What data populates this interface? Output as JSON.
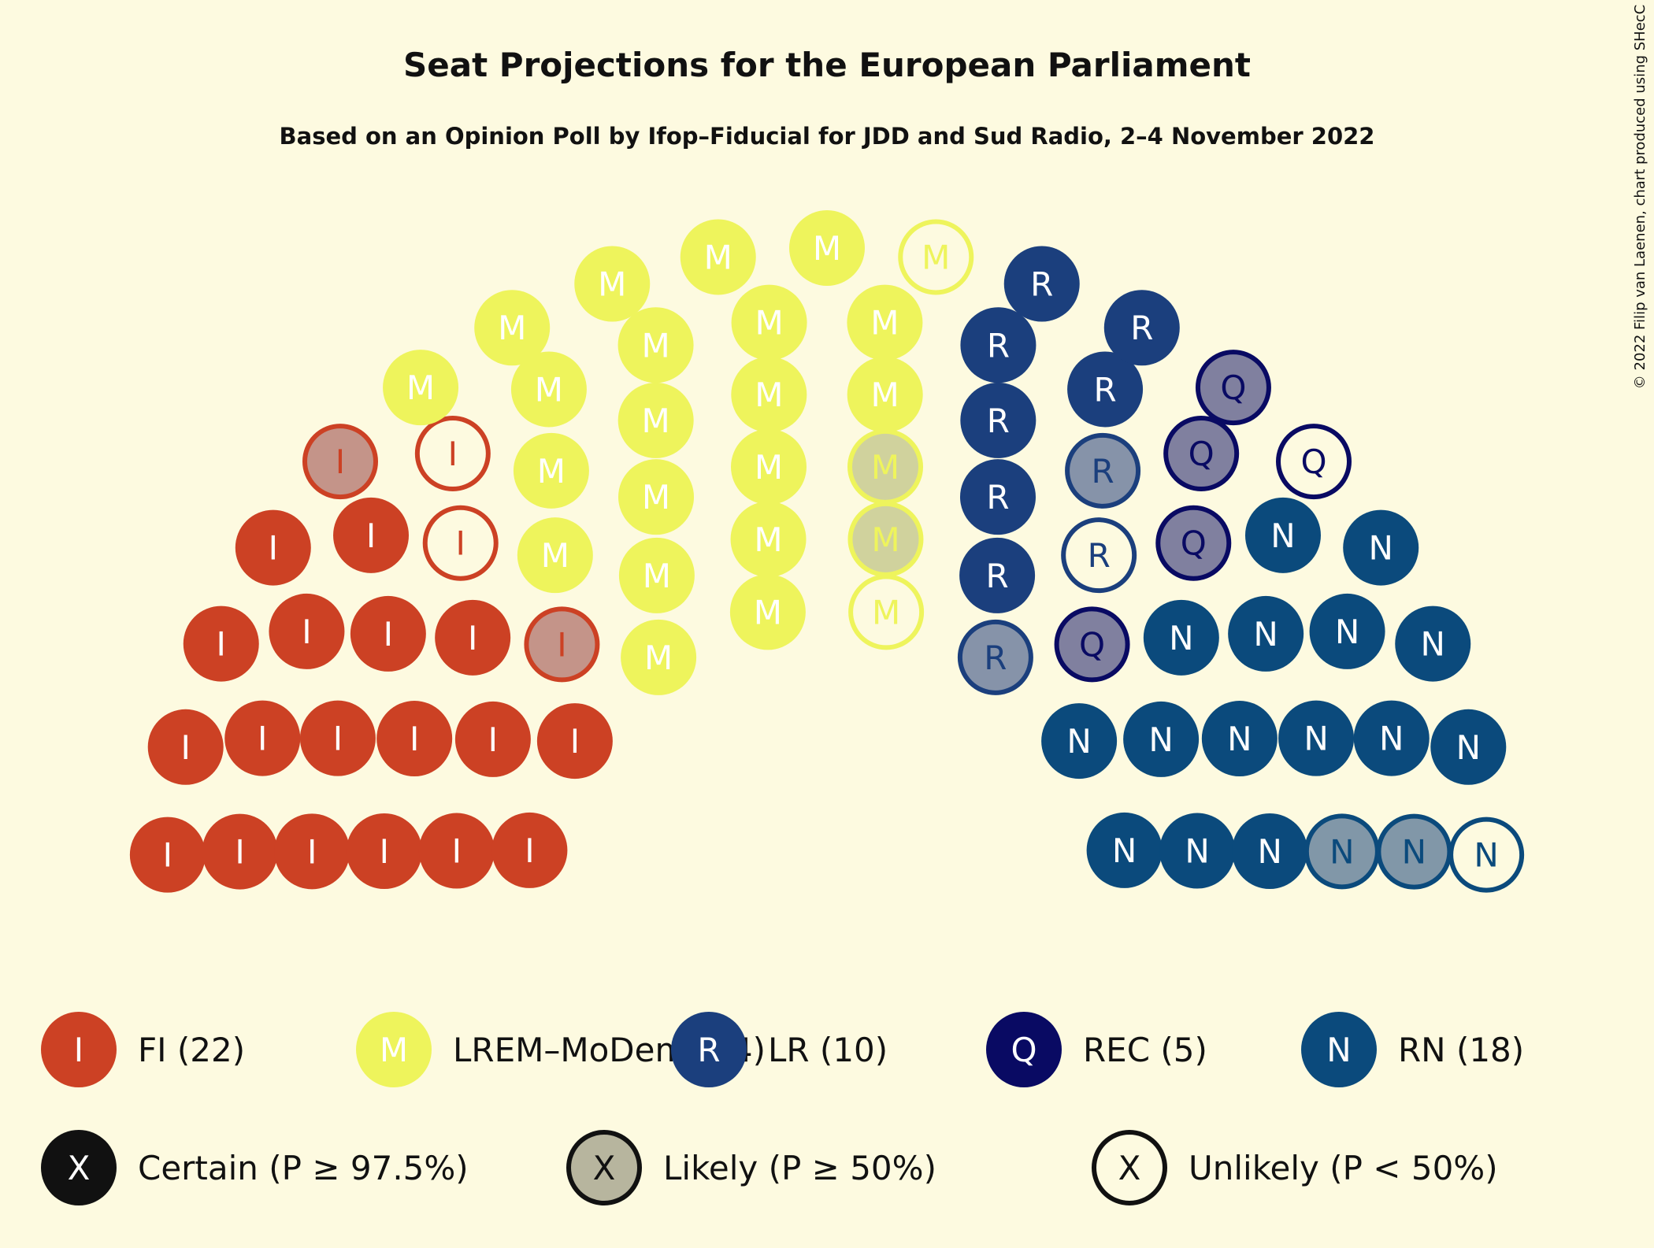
{
  "title": "Seat Projections for the European Parliament",
  "subtitle": "Based on an Opinion Poll by Ifop–Fiducial for JDD and Sud Radio, 2–4 November 2022",
  "copyright": "© 2022 Filip van Laenen, chart produced using SHecC",
  "chart_data": {
    "type": "parliament",
    "total_seats": 79,
    "parties": [
      {
        "letter": "I",
        "name": "FI",
        "seats": 22,
        "certain": 18,
        "likely": 2,
        "unlikely": 2,
        "color": "#cc4124"
      },
      {
        "letter": "M",
        "name": "LREM–MoDem",
        "seats": 24,
        "certain": 20,
        "likely": 2,
        "unlikely": 2,
        "color": "#eef45c"
      },
      {
        "letter": "R",
        "name": "LR",
        "seats": 10,
        "certain": 7,
        "likely": 2,
        "unlikely": 1,
        "color": "#1b3f7d"
      },
      {
        "letter": "Q",
        "name": "REC",
        "seats": 5,
        "certain": 0,
        "likely": 4,
        "unlikely": 1,
        "color": "#090a63"
      },
      {
        "letter": "N",
        "name": "RN",
        "seats": 18,
        "certain": 15,
        "likely": 2,
        "unlikely": 1,
        "color": "#0b4a7c"
      }
    ],
    "legend_parties": [
      "FI (22)",
      "LREM–MoDem (24)",
      "LR (10)",
      "REC (5)",
      "RN (18)"
    ],
    "legend_status": [
      {
        "symbol": "X",
        "label": "Certain (P ≥ 97.5%)",
        "style": "certain"
      },
      {
        "symbol": "X",
        "label": "Likely (P ≥ 50%)",
        "style": "likely"
      },
      {
        "symbol": "X",
        "label": "Unlikely (P < 50%)",
        "style": "unlikely"
      }
    ],
    "status_colors": {
      "certain": "#111111",
      "likely": "#b7b59e",
      "unlikely": "#fdfae0"
    }
  }
}
